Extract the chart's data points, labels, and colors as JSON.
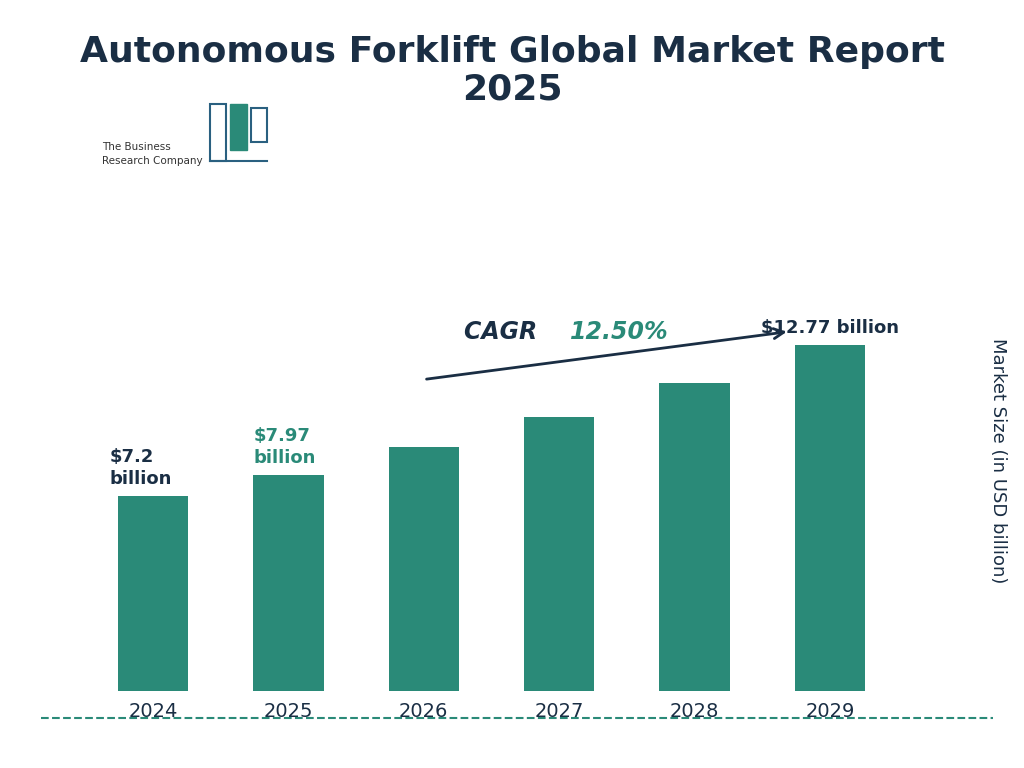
{
  "title_line1": "Autonomous Forklift Global Market Report",
  "title_line2": "2025",
  "title_color": "#1a2e44",
  "title_fontsize": 26,
  "categories": [
    "2024",
    "2025",
    "2026",
    "2027",
    "2028",
    "2029"
  ],
  "values": [
    7.2,
    7.97,
    9.0,
    10.13,
    11.37,
    12.77
  ],
  "bar_color": "#2a8a78",
  "ylabel": "Market Size (in USD billion)",
  "ylabel_color": "#1a2e44",
  "ylabel_fontsize": 13,
  "xtick_fontsize": 14,
  "background_color": "#ffffff",
  "label_2024": "$7.2\nbillion",
  "label_2025": "$7.97\nbillion",
  "label_2029": "$12.77 billion",
  "label_2024_color": "#1a2e44",
  "label_2025_color": "#2a8a78",
  "label_2029_color": "#1a2e44",
  "cagr_word": "CAGR ",
  "cagr_pct": "12.50%",
  "cagr_word_color": "#1a2e44",
  "cagr_pct_color": "#2a8a78",
  "bottom_line_color": "#2a8a78",
  "ylim": [
    0,
    17
  ],
  "bar_width": 0.52
}
